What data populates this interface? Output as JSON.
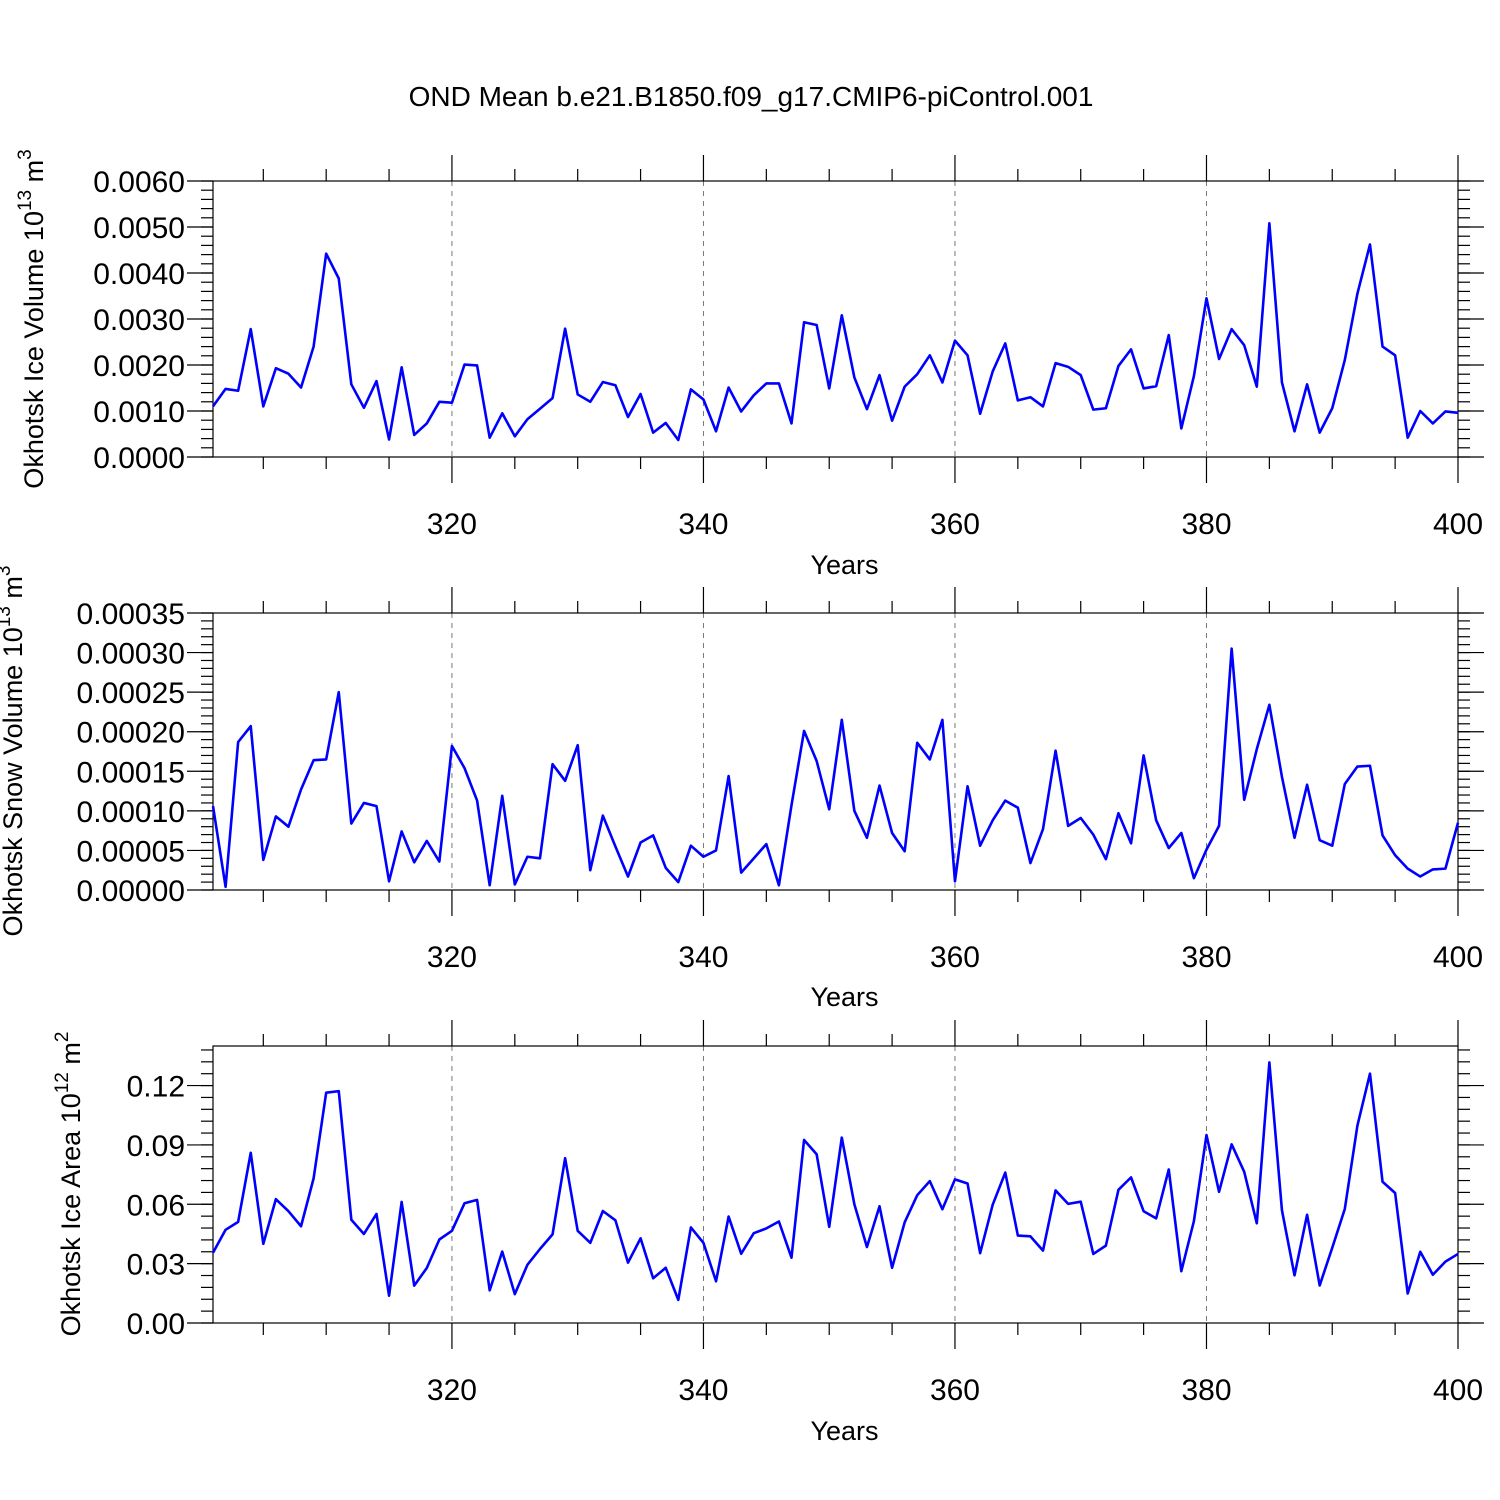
{
  "title": "OND Mean b.e21.B1850.f09_g17.CMIP6-piControl.001",
  "colors": {
    "line": "#0000ff",
    "grid": "#777777",
    "frame": "#000000"
  },
  "chart_data": [
    {
      "type": "line",
      "title": "OND Mean b.e21.B1850.f09_g17.CMIP6-piControl.001",
      "xlabel": "Years",
      "ylabel": "Okhotsk Ice Volume 10",
      "ylabel_exp": "13",
      "ylabel_unit": " m",
      "ylabel_unit_exp": "3",
      "xlim": [
        301,
        400
      ],
      "ylim": [
        0,
        0.006
      ],
      "xticks": [
        320,
        340,
        360,
        380,
        400
      ],
      "xtick_labels": [
        "320",
        "340",
        "360",
        "380",
        "400"
      ],
      "yticks": [
        0,
        0.001,
        0.002,
        0.003,
        0.004,
        0.005,
        0.006
      ],
      "ytick_labels": [
        "0.0000",
        "0.0010",
        "0.0020",
        "0.0030",
        "0.0040",
        "0.0050",
        "0.0060"
      ],
      "grid": "vertical dashed at major x ticks",
      "x_start": 301,
      "values": [
        0.0011,
        0.00148,
        0.00144,
        0.00278,
        0.0011,
        0.00193,
        0.00181,
        0.00151,
        0.0024,
        0.00442,
        0.00388,
        0.00158,
        0.00107,
        0.00165,
        0.00038,
        0.00195,
        0.00048,
        0.00073,
        0.0012,
        0.00118,
        0.00201,
        0.00199,
        0.00042,
        0.00095,
        0.00045,
        0.00082,
        0.00105,
        0.00128,
        0.00279,
        0.00136,
        0.0012,
        0.00163,
        0.00156,
        0.00087,
        0.00137,
        0.00053,
        0.00074,
        0.00037,
        0.00147,
        0.00125,
        0.00056,
        0.00151,
        0.00099,
        0.00134,
        0.0016,
        0.0016,
        0.00073,
        0.00293,
        0.00287,
        0.00149,
        0.00308,
        0.00173,
        0.00104,
        0.00178,
        0.00079,
        0.00153,
        0.0018,
        0.00221,
        0.00162,
        0.00253,
        0.00221,
        0.00094,
        0.00186,
        0.00247,
        0.00123,
        0.0013,
        0.0011,
        0.00204,
        0.00196,
        0.00178,
        0.00103,
        0.00106,
        0.00198,
        0.00234,
        0.00149,
        0.00154,
        0.00265,
        0.00062,
        0.00176,
        0.00345,
        0.00213,
        0.00278,
        0.00243,
        0.00153,
        0.00508,
        0.00162,
        0.00056,
        0.00158,
        0.00053,
        0.00106,
        0.00211,
        0.00355,
        0.00462,
        0.0024,
        0.00221,
        0.00042,
        0.001,
        0.00073,
        0.00099,
        0.00096
      ]
    },
    {
      "type": "line",
      "xlabel": "Years",
      "ylabel": "Okhotsk Snow Volume 10",
      "ylabel_exp": "13",
      "ylabel_unit": " m",
      "ylabel_unit_exp": "3",
      "xlim": [
        301,
        400
      ],
      "ylim": [
        0,
        0.00035
      ],
      "xticks": [
        320,
        340,
        360,
        380,
        400
      ],
      "xtick_labels": [
        "320",
        "340",
        "360",
        "380",
        "400"
      ],
      "yticks": [
        0,
        5e-05,
        0.0001,
        0.00015,
        0.0002,
        0.00025,
        0.0003,
        0.00035
      ],
      "ytick_labels": [
        "0.00000",
        "0.00005",
        "0.00010",
        "0.00015",
        "0.00020",
        "0.00025",
        "0.00030",
        "0.00035"
      ],
      "grid": "vertical dashed at major x ticks",
      "x_start": 301,
      "values": [
        0.000106,
        4e-06,
        0.000187,
        0.000207,
        3.8e-05,
        9.3e-05,
        8e-05,
        0.000127,
        0.000164,
        0.000165,
        0.00025,
        8.4e-05,
        0.00011,
        0.000106,
        1.1e-05,
        7.4e-05,
        3.5e-05,
        6.2e-05,
        3.6e-05,
        0.000182,
        0.000154,
        0.000113,
        6e-06,
        0.000119,
        7e-06,
        4.2e-05,
        4e-05,
        0.000159,
        0.000138,
        0.000183,
        2.5e-05,
        9.4e-05,
        5.5e-05,
        1.7e-05,
        6e-05,
        6.9e-05,
        2.8e-05,
        1e-05,
        5.6e-05,
        4.2e-05,
        5e-05,
        0.000144,
        2.2e-05,
        4e-05,
        5.8e-05,
        6e-06,
        0.000107,
        0.000201,
        0.000163,
        0.000102,
        0.000215,
        0.0001,
        6.6e-05,
        0.000132,
        7.2e-05,
        4.9e-05,
        0.000186,
        0.000165,
        0.000215,
        1.1e-05,
        0.000131,
        5.6e-05,
        8.8e-05,
        0.000113,
        0.000104,
        3.4e-05,
        7.7e-05,
        0.000176,
        8.1e-05,
        9.1e-05,
        7e-05,
        3.9e-05,
        9.7e-05,
        5.9e-05,
        0.00017,
        8.8e-05,
        5.3e-05,
        7.2e-05,
        1.5e-05,
        5.1e-05,
        8.1e-05,
        0.000305,
        0.000114,
        0.000178,
        0.000234,
        0.000143,
        6.6e-05,
        0.000133,
        6.3e-05,
        5.6e-05,
        0.000134,
        0.000156,
        0.000157,
        6.9e-05,
        4.4e-05,
        2.7e-05,
        1.7e-05,
        2.6e-05,
        2.7e-05,
        8.5e-05
      ]
    },
    {
      "type": "line",
      "xlabel": "Years",
      "ylabel": "Okhotsk Ice Area 10",
      "ylabel_exp": "12",
      "ylabel_unit": " m",
      "ylabel_unit_exp": "2",
      "xlim": [
        301,
        400
      ],
      "ylim": [
        0,
        0.14
      ],
      "xticks": [
        320,
        340,
        360,
        380,
        400
      ],
      "xtick_labels": [
        "320",
        "340",
        "360",
        "380",
        "400"
      ],
      "yticks": [
        0,
        0.03,
        0.06,
        0.09,
        0.12
      ],
      "ytick_labels": [
        "0.00",
        "0.03",
        "0.06",
        "0.09",
        "0.12"
      ],
      "grid": "vertical dashed at major x ticks",
      "x_start": 301,
      "values": [
        0.0355,
        0.0471,
        0.0511,
        0.086,
        0.04,
        0.0626,
        0.0565,
        0.0489,
        0.0731,
        0.1164,
        0.1172,
        0.0522,
        0.045,
        0.0551,
        0.0138,
        0.0612,
        0.0189,
        0.0278,
        0.0422,
        0.0466,
        0.0605,
        0.0622,
        0.0165,
        0.0361,
        0.0146,
        0.0294,
        0.0374,
        0.0448,
        0.0833,
        0.0466,
        0.0405,
        0.0566,
        0.0519,
        0.0305,
        0.0428,
        0.0226,
        0.0279,
        0.0117,
        0.0483,
        0.0405,
        0.0211,
        0.0538,
        0.035,
        0.0454,
        0.0478,
        0.0513,
        0.033,
        0.0925,
        0.0853,
        0.0486,
        0.0937,
        0.06,
        0.0384,
        0.059,
        0.0279,
        0.0509,
        0.0646,
        0.0717,
        0.0575,
        0.0726,
        0.0705,
        0.0353,
        0.0598,
        0.076,
        0.0442,
        0.0438,
        0.0366,
        0.067,
        0.0602,
        0.0613,
        0.0349,
        0.0391,
        0.0673,
        0.0736,
        0.0565,
        0.0529,
        0.0776,
        0.0262,
        0.0515,
        0.095,
        0.0663,
        0.0903,
        0.0764,
        0.0504,
        0.1317,
        0.057,
        0.0241,
        0.0547,
        0.019,
        0.038,
        0.0577,
        0.0997,
        0.126,
        0.0714,
        0.0657,
        0.0149,
        0.036,
        0.0244,
        0.031,
        0.0349
      ]
    }
  ]
}
